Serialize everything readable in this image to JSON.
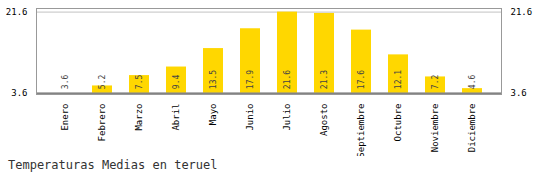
{
  "chart_data": {
    "type": "bar",
    "title": "Temperaturas Medias en teruel",
    "categories": [
      "Enero",
      "Febrero",
      "Marzo",
      "Abril",
      "Mayo",
      "Junio",
      "Julio",
      "Agosto",
      "Septiembre",
      "Octubre",
      "Noviembre",
      "Diciembre"
    ],
    "values": [
      3.6,
      5.2,
      7.5,
      9.4,
      13.5,
      17.9,
      21.6,
      21.3,
      17.6,
      12.1,
      7.2,
      4.6
    ],
    "color": "#FFD700",
    "ylim": [
      3.3,
      22.4
    ],
    "yticks": [
      3.6,
      21.6
    ],
    "grid": true,
    "data_labels": true
  }
}
